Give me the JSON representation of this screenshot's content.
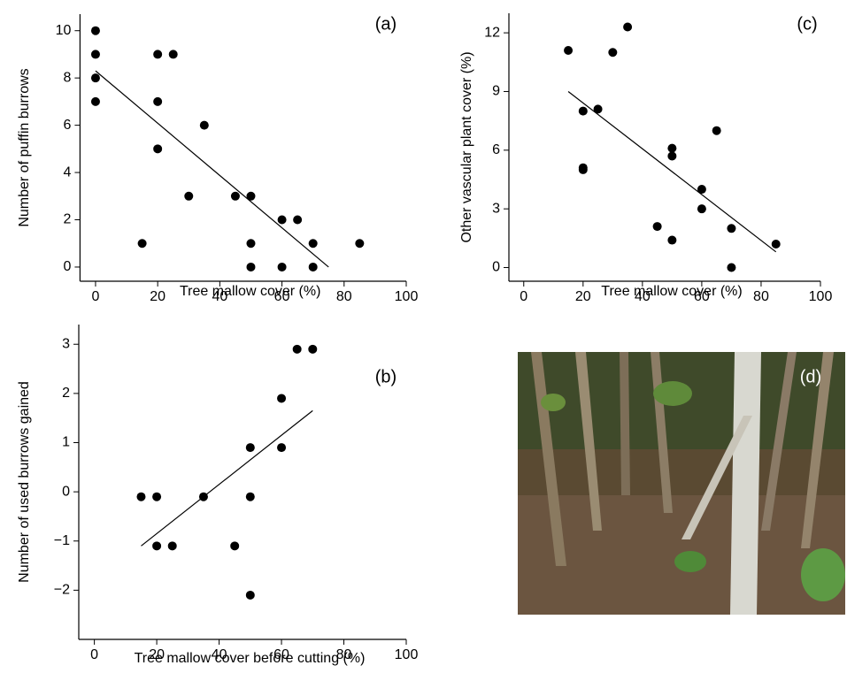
{
  "chart_data": [
    {
      "type": "scatter",
      "label": "(a)",
      "x_label": "Tree mallow cover (%)",
      "y_label": "Number of puffin burrows",
      "color": "#000000",
      "x": [
        0,
        0,
        0,
        0,
        15,
        20,
        25,
        20,
        20,
        30,
        35,
        45,
        50,
        50,
        50,
        60,
        65,
        60,
        70,
        70,
        85
      ],
      "y": [
        10,
        9,
        8,
        7,
        1,
        9,
        9,
        7,
        5,
        3,
        6,
        3,
        3,
        1,
        0,
        2,
        2,
        0,
        1,
        0,
        1
      ],
      "fit": {
        "x": [
          0,
          75
        ],
        "y": [
          8.3,
          0
        ]
      },
      "xlim": [
        -5,
        100
      ],
      "ylim": [
        -0.6,
        10.7
      ],
      "xticks": [
        0,
        20,
        40,
        60,
        80,
        100
      ],
      "yticks": [
        0,
        2,
        4,
        6,
        8,
        10
      ]
    },
    {
      "type": "scatter",
      "label": "(c)",
      "x_label": "Tree mallow cover (%)",
      "y_label": "Other vascular plant cover (%)",
      "color": "#000000",
      "x": [
        15,
        35,
        30,
        20,
        25,
        20,
        20,
        50,
        50,
        65,
        60,
        60,
        45,
        50,
        70,
        70,
        85
      ],
      "y": [
        11.1,
        12.3,
        11,
        8,
        8.1,
        5.1,
        5,
        6.1,
        5.7,
        7,
        4,
        3,
        2.1,
        1.4,
        2,
        0,
        1.2
      ],
      "fit": {
        "x": [
          15,
          85
        ],
        "y": [
          9,
          0.8
        ]
      },
      "xlim": [
        -5,
        100
      ],
      "ylim": [
        -0.7,
        13
      ],
      "xticks": [
        0,
        20,
        40,
        60,
        80,
        100
      ],
      "yticks": [
        0,
        3,
        6,
        9,
        12
      ]
    },
    {
      "type": "scatter",
      "label": "(b)",
      "x_label": "Tree mallow cover before cutting (%)",
      "y_label": "Number of used burrows gained",
      "color": "#000000",
      "x": [
        15,
        20,
        20,
        25,
        35,
        45,
        50,
        50,
        50,
        60,
        60,
        65,
        70
      ],
      "y": [
        -0.1,
        -0.1,
        -1.1,
        -1.1,
        -0.1,
        -1.1,
        -2.1,
        -0.1,
        0.9,
        0.9,
        1.9,
        2.9,
        2.9
      ],
      "fit": {
        "x": [
          15,
          70
        ],
        "y": [
          -1.1,
          1.65
        ]
      },
      "xlim": [
        -5,
        100
      ],
      "ylim": [
        -3,
        3.4
      ],
      "xticks": [
        0,
        20,
        40,
        60,
        80,
        100
      ],
      "yticks": [
        {
          "value": -2,
          "label": "−2"
        },
        {
          "value": -1,
          "label": "−1"
        },
        0,
        1,
        2,
        3
      ]
    }
  ],
  "photo": {
    "label": "(d)"
  }
}
